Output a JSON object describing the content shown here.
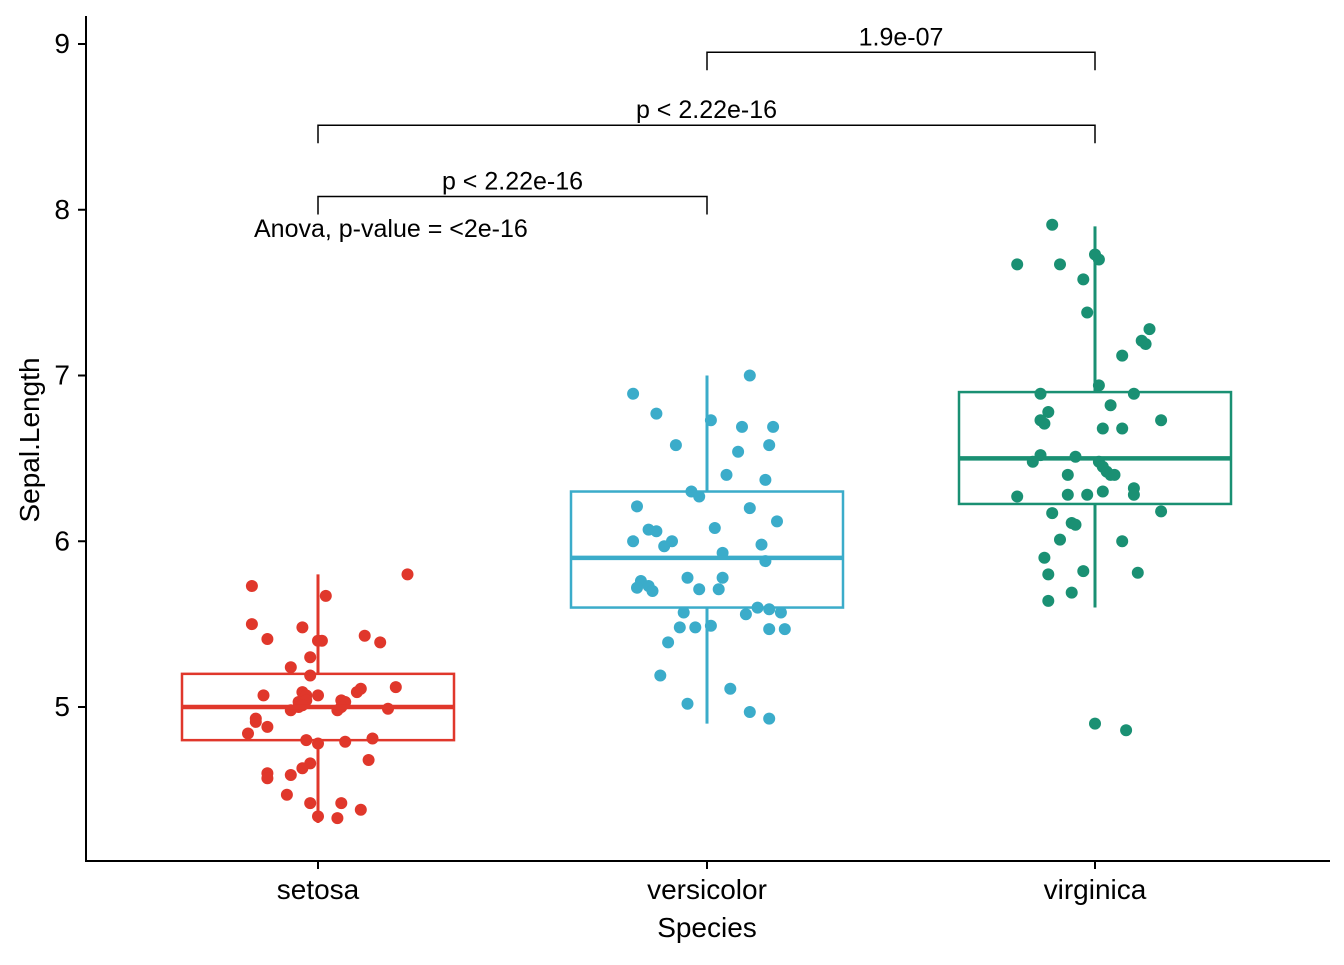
{
  "chart_data": {
    "type": "boxplot",
    "xlabel": "Species",
    "ylabel": "Sepal.Length",
    "ylim": [
      4.15,
      9.2
    ],
    "yticks": [
      "5",
      "6",
      "7",
      "8",
      "9"
    ],
    "grid": false,
    "categories": [
      "setosa",
      "versicolor",
      "virginica"
    ],
    "colors": {
      "setosa": "#e0372b",
      "versicolor": "#3bacca",
      "virginica": "#1a9073"
    },
    "boxes": [
      {
        "name": "setosa",
        "whisker_low": 4.3,
        "q1": 4.8,
        "median": 5.0,
        "q3": 5.2,
        "whisker_high": 5.8,
        "outliers": []
      },
      {
        "name": "versicolor",
        "whisker_low": 4.9,
        "q1": 5.6,
        "median": 5.9,
        "q3": 6.3,
        "whisker_high": 7.0,
        "outliers": []
      },
      {
        "name": "virginica",
        "whisker_low": 5.6,
        "q1": 6.225,
        "median": 6.5,
        "q3": 6.9,
        "whisker_high": 7.9,
        "outliers": [
          4.9
        ]
      }
    ],
    "points": {
      "setosa": [
        [
          -0.17,
          5.73
        ],
        [
          0.02,
          5.67
        ],
        [
          0.23,
          5.8
        ],
        [
          -0.17,
          5.5
        ],
        [
          -0.13,
          5.41
        ],
        [
          -0.04,
          5.48
        ],
        [
          0.0,
          5.4
        ],
        [
          0.01,
          5.4
        ],
        [
          0.12,
          5.43
        ],
        [
          0.16,
          5.39
        ],
        [
          -0.07,
          5.24
        ],
        [
          -0.02,
          5.3
        ],
        [
          -0.02,
          5.19
        ],
        [
          0.2,
          5.12
        ],
        [
          -0.14,
          5.07
        ],
        [
          -0.04,
          5.09
        ],
        [
          -0.03,
          5.07
        ],
        [
          0.0,
          5.07
        ],
        [
          0.1,
          5.09
        ],
        [
          0.11,
          5.11
        ],
        [
          -0.05,
          5.03
        ],
        [
          -0.03,
          5.04
        ],
        [
          0.06,
          5.04
        ],
        [
          0.07,
          5.03
        ],
        [
          -0.05,
          5.0
        ],
        [
          -0.07,
          4.98
        ],
        [
          -0.04,
          5.01
        ],
        [
          0.06,
          5.0
        ],
        [
          0.05,
          4.98
        ],
        [
          0.18,
          4.99
        ],
        [
          -0.16,
          4.93
        ],
        [
          -0.16,
          4.91
        ],
        [
          -0.13,
          4.88
        ],
        [
          -0.18,
          4.84
        ],
        [
          -0.03,
          4.8
        ],
        [
          0.0,
          4.78
        ],
        [
          0.07,
          4.79
        ],
        [
          0.14,
          4.81
        ],
        [
          0.13,
          4.68
        ],
        [
          -0.02,
          4.66
        ],
        [
          -0.04,
          4.63
        ],
        [
          -0.13,
          4.6
        ],
        [
          -0.13,
          4.57
        ],
        [
          -0.07,
          4.59
        ],
        [
          -0.08,
          4.47
        ],
        [
          -0.02,
          4.42
        ],
        [
          0.06,
          4.42
        ],
        [
          0.11,
          4.38
        ],
        [
          0.05,
          4.33
        ],
        [
          0.0,
          4.34
        ]
      ],
      "versicolor": [
        [
          0.11,
          7.0
        ],
        [
          -0.19,
          6.89
        ],
        [
          -0.13,
          6.77
        ],
        [
          0.01,
          6.73
        ],
        [
          0.09,
          6.69
        ],
        [
          0.17,
          6.69
        ],
        [
          -0.08,
          6.58
        ],
        [
          0.16,
          6.58
        ],
        [
          0.08,
          6.54
        ],
        [
          0.05,
          6.4
        ],
        [
          0.15,
          6.37
        ],
        [
          -0.04,
          6.3
        ],
        [
          -0.02,
          6.27
        ],
        [
          -0.18,
          6.21
        ],
        [
          0.11,
          6.2
        ],
        [
          0.18,
          6.12
        ],
        [
          0.02,
          6.08
        ],
        [
          -0.15,
          6.07
        ],
        [
          -0.13,
          6.06
        ],
        [
          -0.19,
          6.0
        ],
        [
          -0.09,
          6.0
        ],
        [
          -0.11,
          5.97
        ],
        [
          0.14,
          5.98
        ],
        [
          0.04,
          5.93
        ],
        [
          0.15,
          5.88
        ],
        [
          -0.17,
          5.76
        ],
        [
          -0.05,
          5.78
        ],
        [
          0.04,
          5.78
        ],
        [
          -0.15,
          5.73
        ],
        [
          -0.18,
          5.72
        ],
        [
          -0.14,
          5.7
        ],
        [
          -0.02,
          5.71
        ],
        [
          0.03,
          5.71
        ],
        [
          0.13,
          5.6
        ],
        [
          0.16,
          5.59
        ],
        [
          0.19,
          5.57
        ],
        [
          -0.06,
          5.57
        ],
        [
          0.1,
          5.56
        ],
        [
          -0.07,
          5.48
        ],
        [
          -0.03,
          5.48
        ],
        [
          0.01,
          5.49
        ],
        [
          0.16,
          5.47
        ],
        [
          0.2,
          5.47
        ],
        [
          -0.1,
          5.39
        ],
        [
          -0.12,
          5.19
        ],
        [
          0.06,
          5.11
        ],
        [
          -0.05,
          5.02
        ],
        [
          0.11,
          4.97
        ],
        [
          0.16,
          4.93
        ]
      ],
      "virginica": [
        [
          -0.11,
          7.91
        ],
        [
          0.0,
          7.73
        ],
        [
          0.01,
          7.7
        ],
        [
          -0.2,
          7.67
        ],
        [
          -0.09,
          7.67
        ],
        [
          -0.03,
          7.58
        ],
        [
          -0.02,
          7.38
        ],
        [
          0.14,
          7.28
        ],
        [
          0.12,
          7.21
        ],
        [
          0.13,
          7.19
        ],
        [
          0.07,
          7.12
        ],
        [
          0.01,
          6.94
        ],
        [
          -0.14,
          6.89
        ],
        [
          0.1,
          6.89
        ],
        [
          0.04,
          6.82
        ],
        [
          -0.12,
          6.78
        ],
        [
          0.17,
          6.73
        ],
        [
          -0.14,
          6.73
        ],
        [
          -0.13,
          6.71
        ],
        [
          0.02,
          6.68
        ],
        [
          0.07,
          6.68
        ],
        [
          -0.14,
          6.52
        ],
        [
          -0.05,
          6.51
        ],
        [
          0.01,
          6.48
        ],
        [
          -0.16,
          6.48
        ],
        [
          0.02,
          6.45
        ],
        [
          0.03,
          6.42
        ],
        [
          0.04,
          6.4
        ],
        [
          0.05,
          6.4
        ],
        [
          -0.07,
          6.4
        ],
        [
          0.1,
          6.32
        ],
        [
          0.1,
          6.28
        ],
        [
          0.02,
          6.3
        ],
        [
          -0.02,
          6.28
        ],
        [
          -0.07,
          6.28
        ],
        [
          -0.2,
          6.27
        ],
        [
          0.17,
          6.18
        ],
        [
          -0.11,
          6.17
        ],
        [
          -0.06,
          6.11
        ],
        [
          -0.05,
          6.1
        ],
        [
          -0.09,
          6.01
        ],
        [
          0.07,
          6.0
        ],
        [
          -0.13,
          5.9
        ],
        [
          -0.12,
          5.8
        ],
        [
          0.11,
          5.81
        ],
        [
          -0.03,
          5.82
        ],
        [
          -0.06,
          5.69
        ],
        [
          -0.12,
          5.64
        ],
        [
          0.0,
          4.9
        ],
        [
          0.08,
          4.86
        ]
      ]
    },
    "annotations": {
      "anova": "Anova, p-value = <2e-16",
      "comparisons": [
        {
          "group1": "setosa",
          "group2": "versicolor",
          "label": "p < 2.22e-16",
          "y": 8.08
        },
        {
          "group1": "setosa",
          "group2": "virginica",
          "label": "p < 2.22e-16",
          "y": 8.51
        },
        {
          "group1": "versicolor",
          "group2": "virginica",
          "label": "1.9e-07",
          "y": 8.95
        }
      ]
    }
  }
}
